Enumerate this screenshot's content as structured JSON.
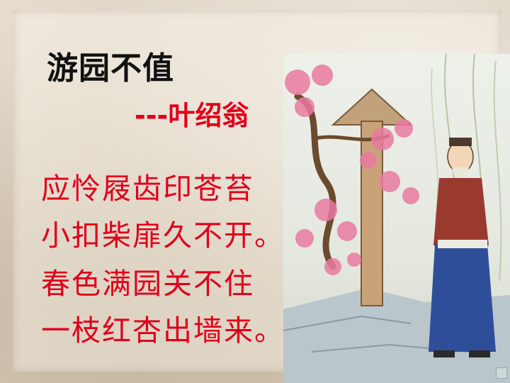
{
  "slide": {
    "title": "游园不值",
    "author_line": "---叶绍翁",
    "poem_lines": [
      "应怜屐齿印苍苔",
      "小扣柴扉久不开。",
      "春色满园关不住",
      "一枝红杏出墙来。"
    ]
  },
  "colors": {
    "title": "#111111",
    "poem": "#e0001b",
    "background": "#d9cfc0"
  },
  "icons": {
    "illustration": "poet-under-apricot-blossoms-painting",
    "corner": "nav-corner-icon"
  }
}
